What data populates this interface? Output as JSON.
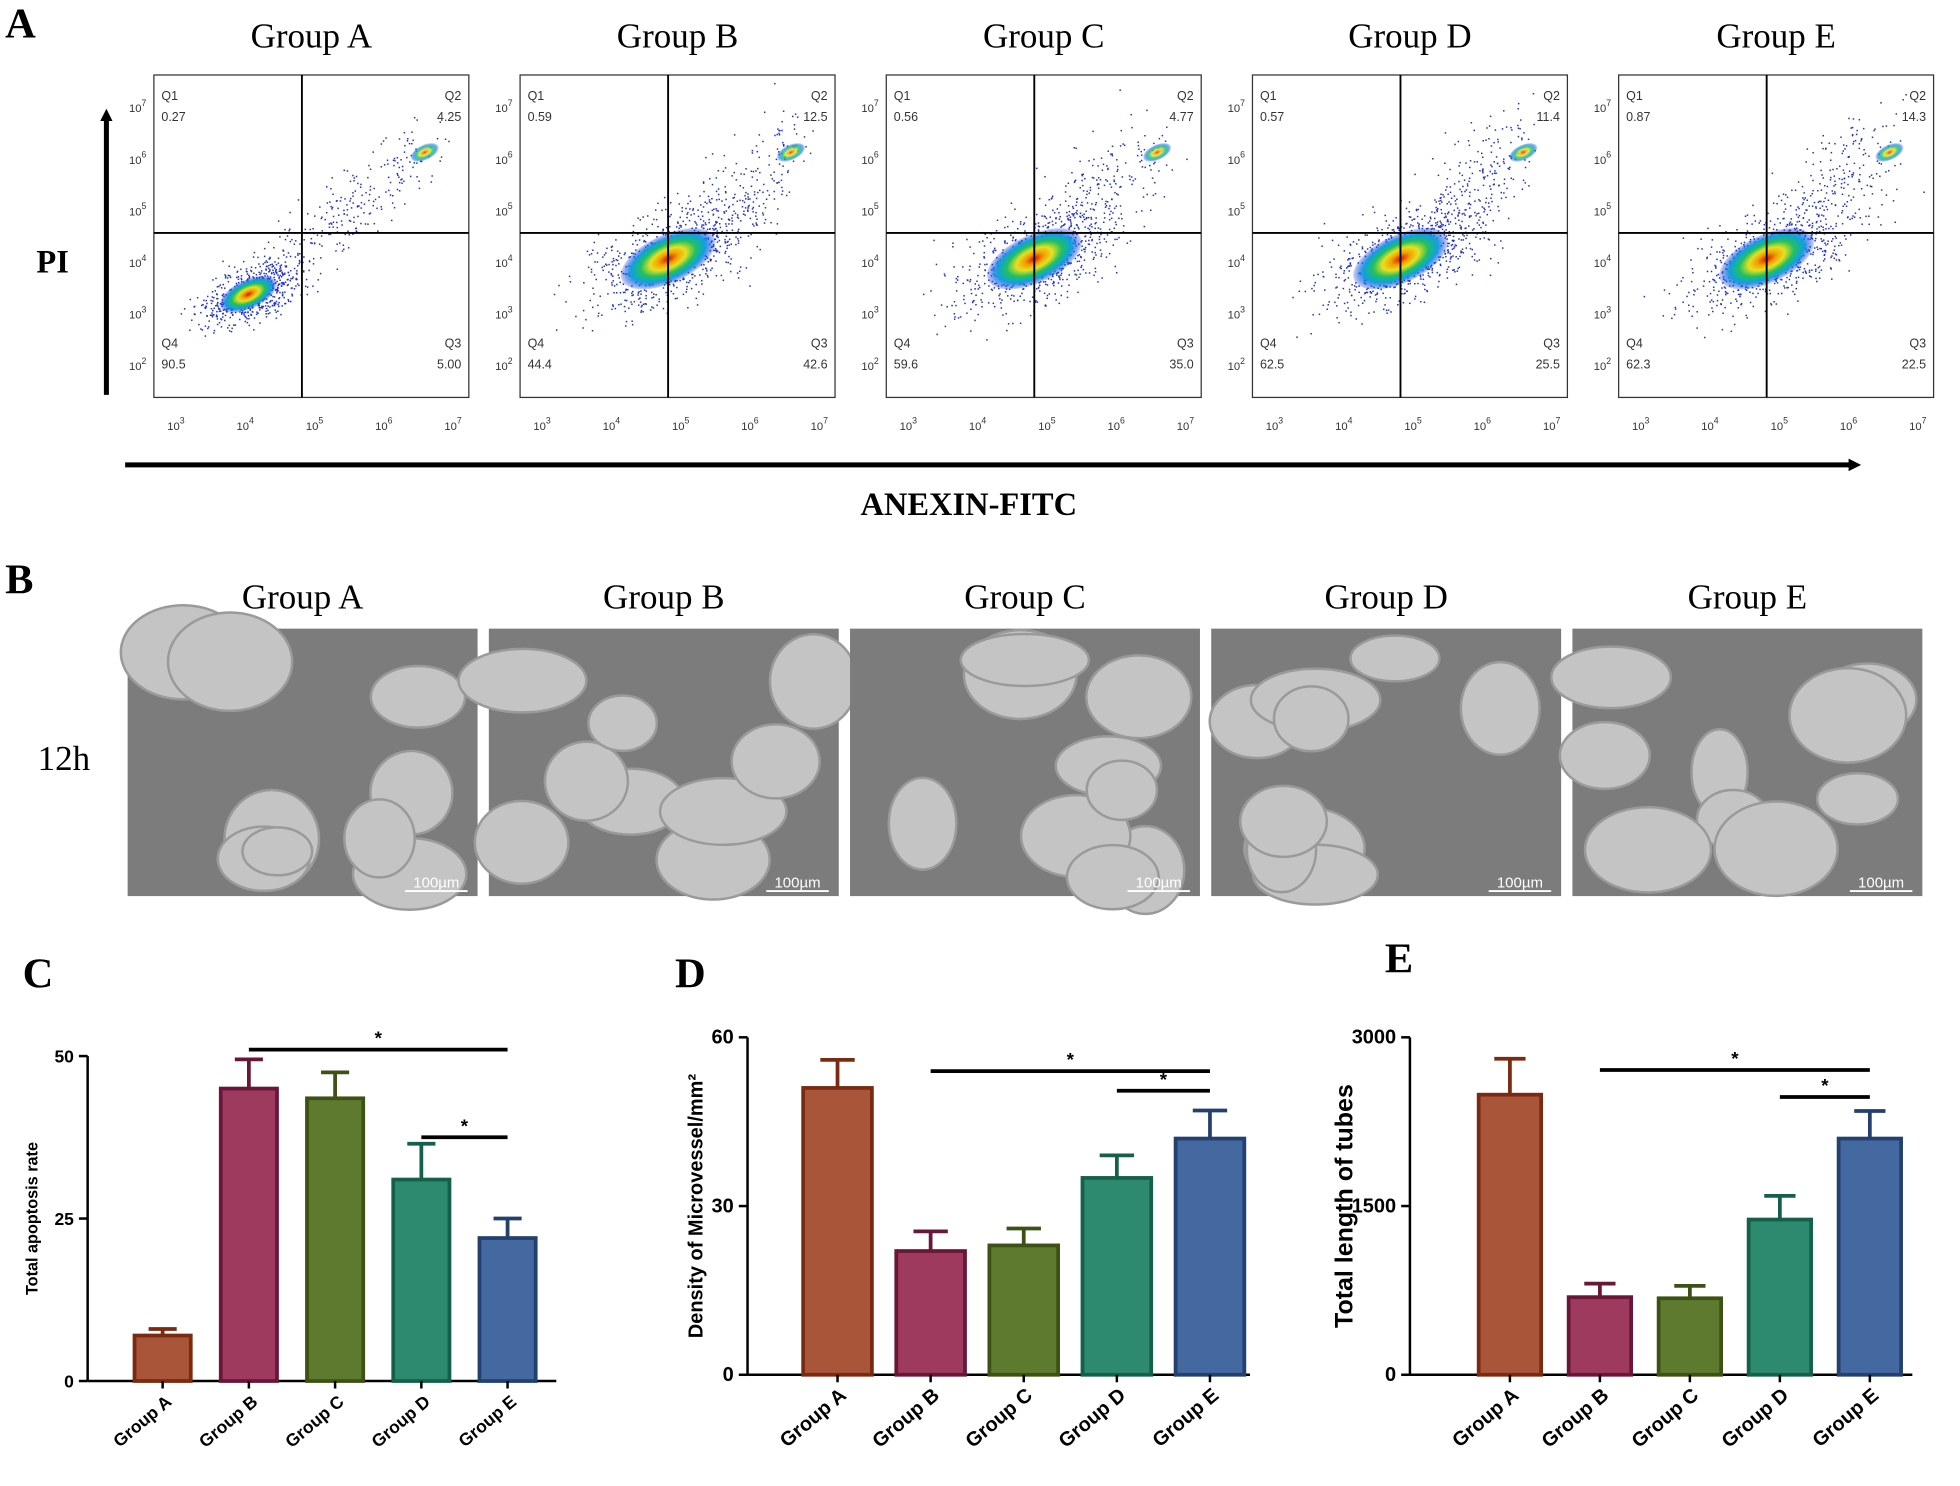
{
  "panel_labels": [
    "A",
    "B",
    "C",
    "D",
    "E"
  ],
  "groups": [
    "Group A",
    "Group B",
    "Group C",
    "Group D",
    "Group E"
  ],
  "flow_cytometry": {
    "y_axis_label": "PI",
    "x_axis_label": "ANEXIN-FITC",
    "tick_base": "10",
    "x_tick_exponents": [
      "3",
      "4",
      "5",
      "6",
      "7"
    ],
    "y_tick_exponents": [
      "2",
      "3",
      "4",
      "5",
      "6",
      "7"
    ],
    "quadrants": [
      "Q1",
      "Q2",
      "Q3",
      "Q4"
    ],
    "plots": [
      {
        "values": [
          "0.27",
          "4.25",
          "5.00",
          "90.5"
        ]
      },
      {
        "values": [
          "0.59",
          "12.5",
          "42.6",
          "44.4"
        ]
      },
      {
        "values": [
          "0.56",
          "4.77",
          "35.0",
          "59.6"
        ]
      },
      {
        "values": [
          "0.57",
          "11.4",
          "25.5",
          "62.5"
        ]
      },
      {
        "values": [
          "0.87",
          "14.3",
          "22.5",
          "62.3"
        ]
      }
    ]
  },
  "tube_formation": {
    "time_label": "12h",
    "scale_bar": "100µm"
  },
  "chart_data": [
    {
      "type": "bar",
      "y_label": "Total apoptosis rate",
      "categories": [
        "Group A",
        "Group B",
        "Group C",
        "Group D",
        "Group E"
      ],
      "values": [
        7,
        45,
        43.5,
        31,
        22
      ],
      "errors": [
        1,
        4.5,
        4,
        5.5,
        3
      ],
      "colors": [
        "#a9553a",
        "#9e3a5e",
        "#5e7a2e",
        "#2e8a6e",
        "#4468a0"
      ],
      "edge_colors": [
        "#7a2a10",
        "#6a1638",
        "#3c5214",
        "#14604a",
        "#23406e"
      ],
      "ylim": [
        0,
        50
      ],
      "yticks": [
        0,
        25,
        50
      ],
      "annotations": [
        {
          "text": "*",
          "x": [
            "Group B",
            "Group E"
          ],
          "y": 51
        },
        {
          "text": "*",
          "x": [
            "Group D",
            "Group E"
          ],
          "y": 37.5
        }
      ]
    },
    {
      "type": "bar",
      "y_label": "Density of Microvessel/mm²",
      "categories": [
        "Group A",
        "Group B",
        "Group C",
        "Group D",
        "Group E"
      ],
      "values": [
        51,
        22,
        23,
        35,
        42
      ],
      "errors": [
        5,
        3.5,
        3,
        4,
        5
      ],
      "colors": [
        "#a9553a",
        "#9e3a5e",
        "#5e7a2e",
        "#2e8a6e",
        "#4468a0"
      ],
      "edge_colors": [
        "#7a2a10",
        "#6a1638",
        "#3c5214",
        "#14604a",
        "#23406e"
      ],
      "ylim": [
        0,
        60
      ],
      "yticks": [
        0,
        30,
        60
      ],
      "annotations": [
        {
          "text": "*",
          "x": [
            "Group B",
            "Group E"
          ],
          "y": 54
        },
        {
          "text": "*",
          "x": [
            "Group D",
            "Group E"
          ],
          "y": 50.5
        }
      ]
    },
    {
      "type": "bar",
      "y_label": "Total length of tubes",
      "categories": [
        "Group A",
        "Group B",
        "Group C",
        "Group D",
        "Group E"
      ],
      "values": [
        2490,
        690,
        680,
        1380,
        2100
      ],
      "errors": [
        320,
        120,
        110,
        210,
        245
      ],
      "colors": [
        "#a9553a",
        "#9e3a5e",
        "#5e7a2e",
        "#2e8a6e",
        "#4468a0"
      ],
      "edge_colors": [
        "#7a2a10",
        "#6a1638",
        "#3c5214",
        "#14604a",
        "#23406e"
      ],
      "ylim": [
        0,
        3000
      ],
      "yticks": [
        0,
        1500,
        3000
      ],
      "annotations": [
        {
          "text": "*",
          "x": [
            "Group B",
            "Group E"
          ],
          "y": 2710
        },
        {
          "text": "*",
          "x": [
            "Group D",
            "Group E"
          ],
          "y": 2470
        }
      ]
    }
  ]
}
